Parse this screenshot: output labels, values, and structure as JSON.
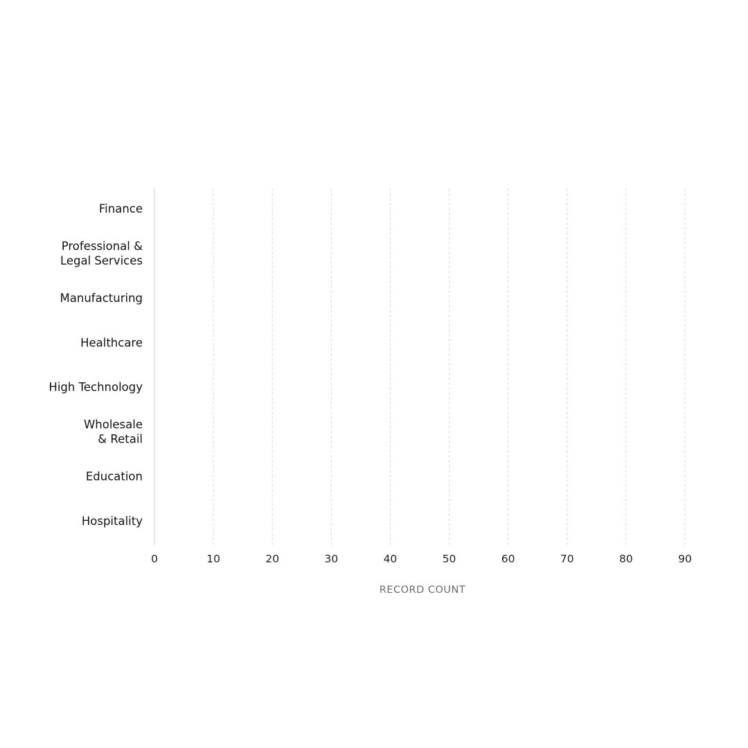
{
  "chart_data": {
    "type": "bar",
    "orientation": "horizontal",
    "categories": [
      [
        "Finance"
      ],
      [
        "Professional &",
        "Legal Services"
      ],
      [
        "Manufacturing"
      ],
      [
        "Healthcare"
      ],
      [
        "High Technology"
      ],
      [
        "Wholesale",
        "& Retail"
      ],
      [
        "Education"
      ],
      [
        "Hospitality"
      ]
    ],
    "values": [
      null,
      null,
      null,
      null,
      null,
      null,
      null,
      null
    ],
    "title": "",
    "xlabel": "RECORD COUNT",
    "ylabel": "",
    "xlim": [
      0,
      90
    ],
    "xticks": [
      "0",
      "10",
      "20",
      "30",
      "40",
      "50",
      "60",
      "70",
      "80",
      "90"
    ],
    "grid": "vertical dashed",
    "colors": {
      "grid": "#d9d9d9",
      "axis": "#d0d0d0",
      "text": "#111111",
      "axis_label": "#6b6b6b"
    }
  }
}
